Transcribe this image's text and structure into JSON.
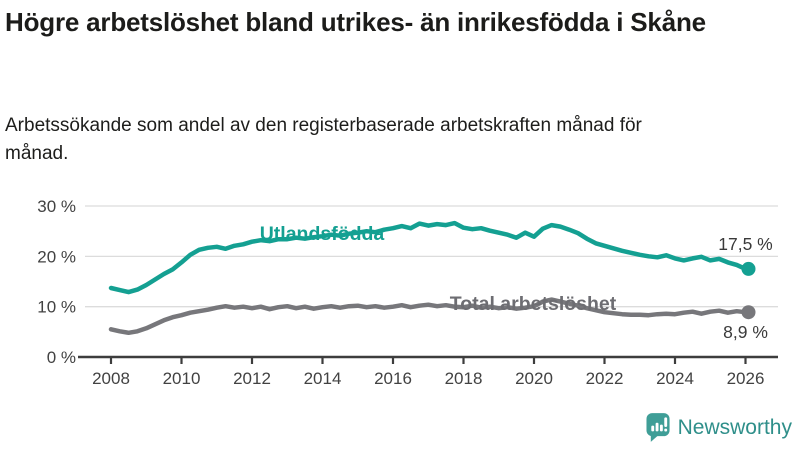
{
  "header": {
    "title": "Högre arbetslöshet bland utrikes- än inrikesfödda i Skåne",
    "subtitle": "Arbetssökande som andel av den registerbaserade arbetskraften månad för månad."
  },
  "chart_data": {
    "type": "line",
    "x_start": 2008,
    "x_interval": 0.25,
    "xlim": [
      2008,
      2026.5
    ],
    "ylim": [
      0,
      31
    ],
    "grid": "horizontal",
    "x_ticks": [
      {
        "value": 2008,
        "label": "2008"
      },
      {
        "value": 2010,
        "label": "2010"
      },
      {
        "value": 2012,
        "label": "2012"
      },
      {
        "value": 2014,
        "label": "2014"
      },
      {
        "value": 2016,
        "label": "2016"
      },
      {
        "value": 2018,
        "label": "2018"
      },
      {
        "value": 2020,
        "label": "2020"
      },
      {
        "value": 2022,
        "label": "2022"
      },
      {
        "value": 2024,
        "label": "2024"
      },
      {
        "value": 2026,
        "label": "2026"
      }
    ],
    "y_ticks": [
      {
        "value": 30,
        "label": "30 %"
      },
      {
        "value": 20,
        "label": "20 %"
      },
      {
        "value": 10,
        "label": "10 %"
      },
      {
        "value": 0,
        "label": "0 %"
      }
    ],
    "axis_color": "#3d3d3d",
    "grid_color": "#dcdcdc",
    "tick_label_color": "#424242",
    "annotation_color": "#3a3a3a",
    "series": [
      {
        "name": "Utlandsfödda",
        "color": "#14a092",
        "label_color": "#14a092",
        "end_label": "17,5 %",
        "end_value": 17.5,
        "values": [
          13.7,
          13.3,
          12.9,
          13.4,
          14.3,
          15.4,
          16.5,
          17.4,
          18.8,
          20.3,
          21.3,
          21.7,
          21.9,
          21.5,
          22.1,
          22.4,
          22.9,
          23.2,
          23.0,
          23.4,
          23.4,
          23.7,
          23.5,
          23.8,
          24.0,
          24.3,
          24.1,
          24.5,
          24.7,
          25.0,
          24.8,
          25.3,
          25.6,
          26.0,
          25.6,
          26.5,
          26.1,
          26.4,
          26.2,
          26.6,
          25.7,
          25.4,
          25.6,
          25.1,
          24.7,
          24.3,
          23.7,
          24.7,
          23.9,
          25.5,
          26.2,
          25.9,
          25.3,
          24.6,
          23.5,
          22.6,
          22.1,
          21.6,
          21.1,
          20.7,
          20.3,
          20.0,
          19.8,
          20.2,
          19.6,
          19.2,
          19.6,
          19.9,
          19.2,
          19.5,
          18.8,
          18.3,
          17.5
        ]
      },
      {
        "name": "Total arbetslöshet",
        "color": "#77777b",
        "label_color": "#6d6d72",
        "end_label": "8,9 %",
        "end_value": 8.9,
        "values": [
          5.5,
          5.1,
          4.8,
          5.1,
          5.7,
          6.5,
          7.3,
          7.9,
          8.3,
          8.8,
          9.1,
          9.4,
          9.8,
          10.1,
          9.8,
          10.0,
          9.7,
          10.0,
          9.5,
          9.9,
          10.1,
          9.7,
          10.0,
          9.6,
          9.9,
          10.1,
          9.8,
          10.1,
          10.2,
          9.9,
          10.1,
          9.8,
          10.0,
          10.3,
          9.9,
          10.2,
          10.4,
          10.1,
          10.3,
          10.0,
          9.9,
          10.2,
          9.8,
          10.0,
          9.7,
          9.9,
          9.6,
          9.8,
          10.1,
          11.0,
          11.4,
          11.0,
          10.6,
          10.2,
          9.7,
          9.3,
          8.9,
          8.7,
          8.5,
          8.4,
          8.4,
          8.3,
          8.5,
          8.6,
          8.5,
          8.8,
          9.0,
          8.6,
          9.0,
          9.2,
          8.8,
          9.1,
          8.9
        ]
      }
    ]
  },
  "branding": {
    "logo_text": "Newsworthy",
    "logo_teal": "#3f9e97",
    "logo_text_color": "#2f8f8a"
  }
}
